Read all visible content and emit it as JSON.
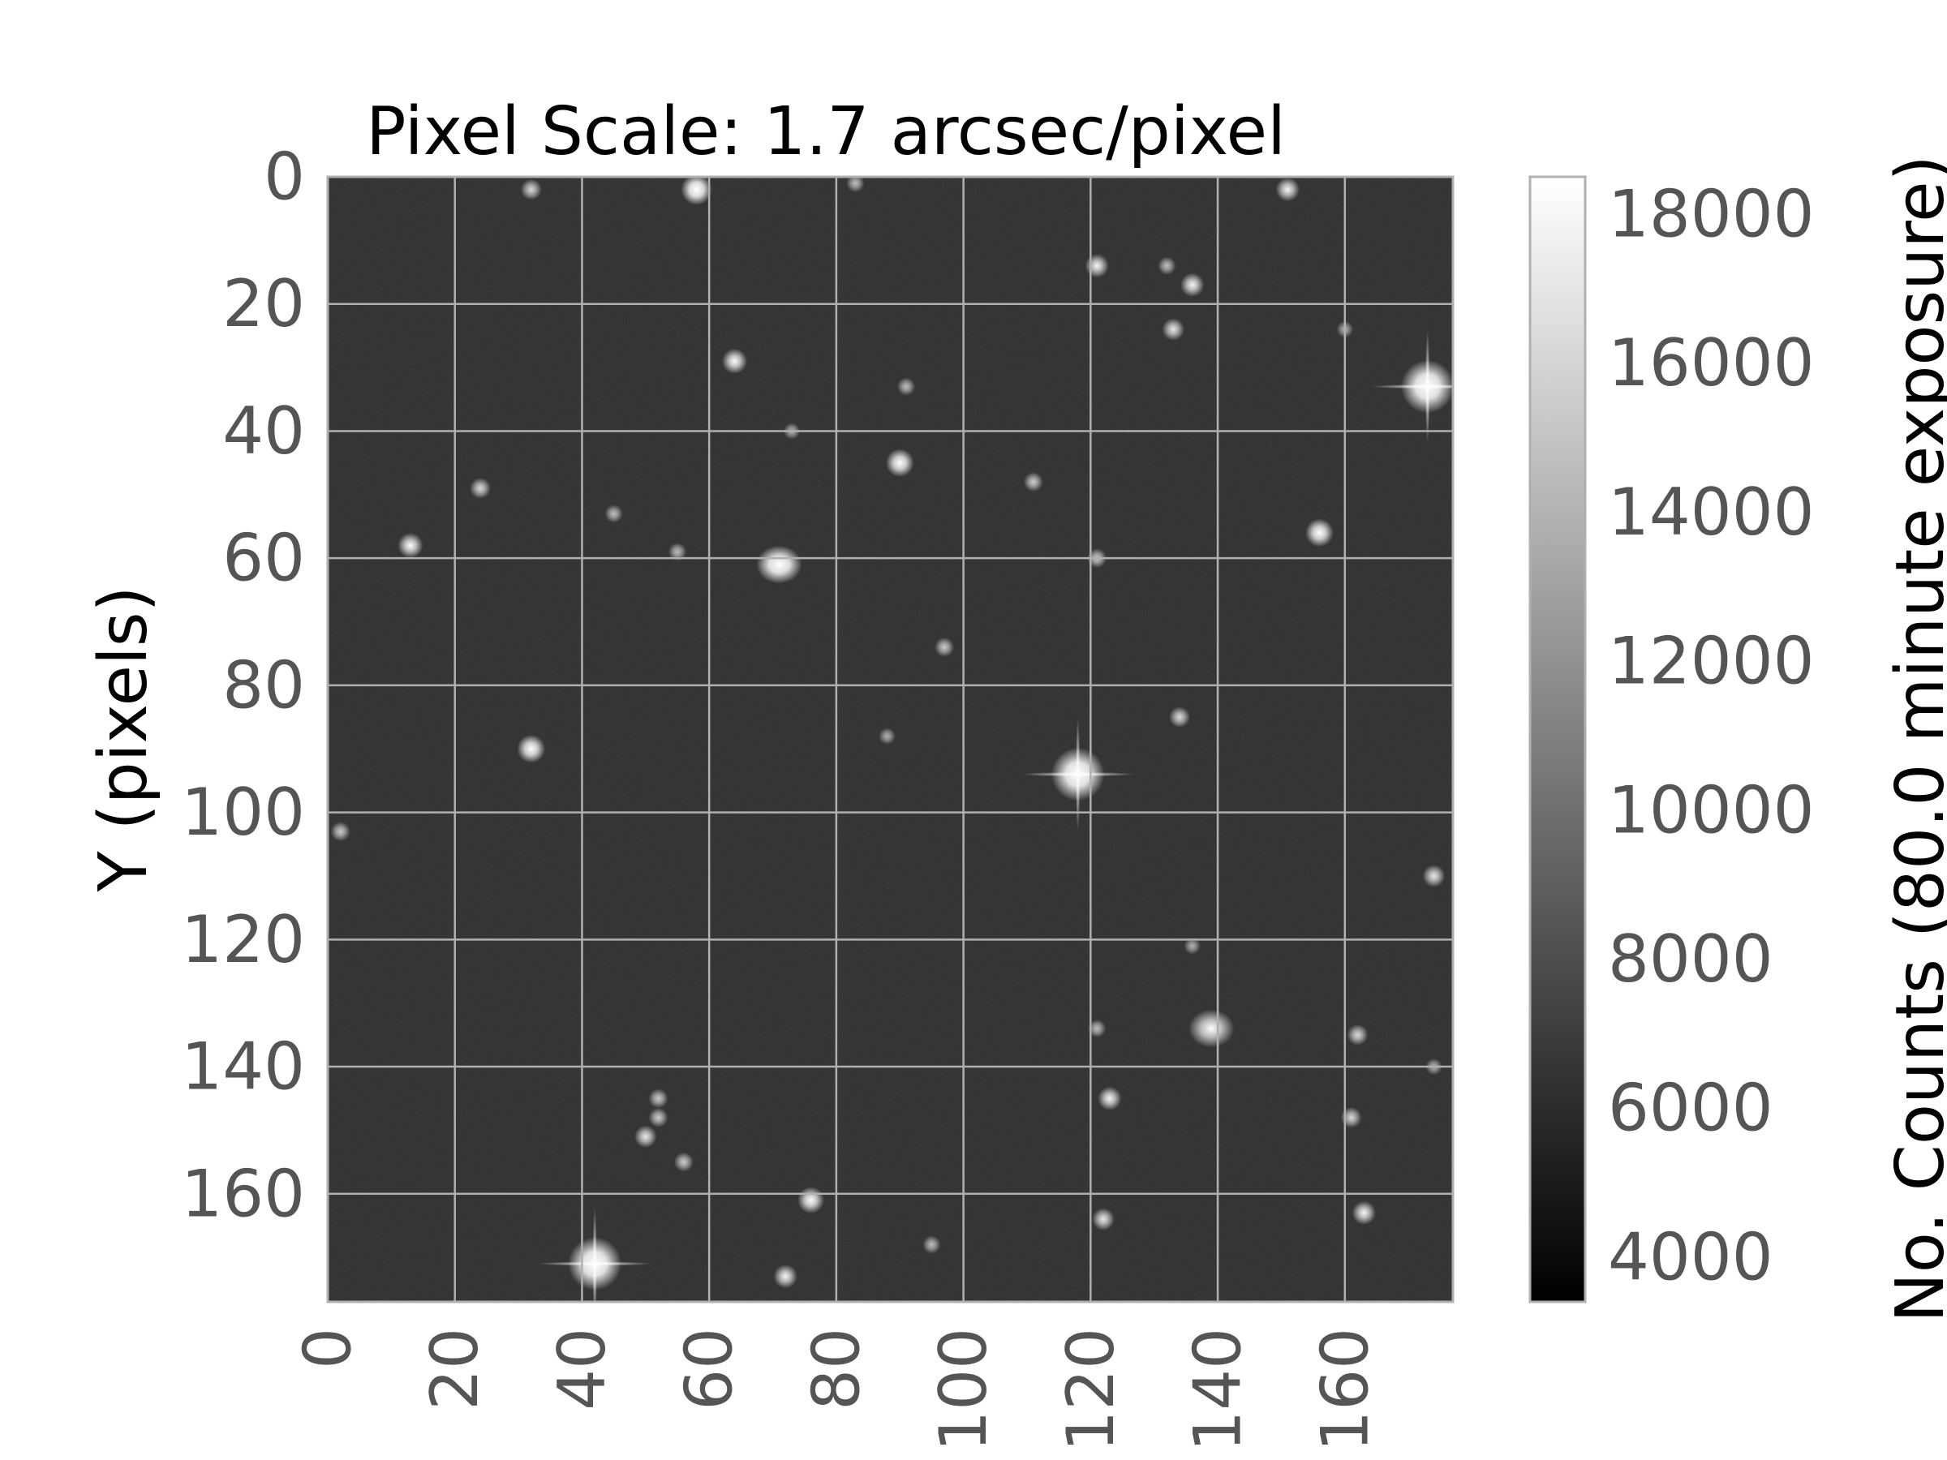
{
  "chart_data": {
    "type": "heatmap",
    "title": "Pixel Scale: 1.7 arcsec/pixel",
    "xlabel": "",
    "ylabel": "Y (pixels)",
    "colorbar_label": "No. Counts (80.0 minute exposure)",
    "colormap": "gray",
    "x_range": [
      0,
      177
    ],
    "y_range": [
      0,
      177
    ],
    "y_inverted": true,
    "grid": true,
    "x_ticks": [
      0,
      20,
      40,
      60,
      80,
      100,
      120,
      140,
      160
    ],
    "y_ticks": [
      0,
      20,
      40,
      60,
      80,
      100,
      120,
      140,
      160
    ],
    "colorbar_range": [
      3400,
      18500
    ],
    "colorbar_ticks": [
      4000,
      6000,
      8000,
      10000,
      12000,
      14000,
      16000,
      18000
    ],
    "background_counts": 4300,
    "stars": [
      {
        "x": 58,
        "y": 2,
        "peak": 18000
      },
      {
        "x": 32,
        "y": 2,
        "peak": 11000
      },
      {
        "x": 83,
        "y": 1,
        "peak": 9000
      },
      {
        "x": 151,
        "y": 2,
        "peak": 13000
      },
      {
        "x": 121,
        "y": 14,
        "peak": 13000
      },
      {
        "x": 132,
        "y": 14,
        "peak": 9000
      },
      {
        "x": 136,
        "y": 17,
        "peak": 13000
      },
      {
        "x": 133,
        "y": 24,
        "peak": 12000
      },
      {
        "x": 160,
        "y": 24,
        "peak": 8000
      },
      {
        "x": 64,
        "y": 29,
        "peak": 14000
      },
      {
        "x": 91,
        "y": 33,
        "peak": 9000
      },
      {
        "x": 173,
        "y": 33,
        "peak": 18500,
        "spikes": true
      },
      {
        "x": 73,
        "y": 40,
        "peak": 8000
      },
      {
        "x": 90,
        "y": 45,
        "peak": 16000
      },
      {
        "x": 24,
        "y": 49,
        "peak": 11000
      },
      {
        "x": 111,
        "y": 48,
        "peak": 10000
      },
      {
        "x": 45,
        "y": 53,
        "peak": 9000
      },
      {
        "x": 13,
        "y": 58,
        "peak": 14000
      },
      {
        "x": 156,
        "y": 56,
        "peak": 16000
      },
      {
        "x": 55,
        "y": 59,
        "peak": 9000
      },
      {
        "x": 71,
        "y": 61,
        "peak": 18000,
        "extended": true
      },
      {
        "x": 121,
        "y": 60,
        "peak": 10000
      },
      {
        "x": 97,
        "y": 74,
        "peak": 10000
      },
      {
        "x": 134,
        "y": 85,
        "peak": 11000
      },
      {
        "x": 32,
        "y": 90,
        "peak": 16000
      },
      {
        "x": 88,
        "y": 88,
        "peak": 8000
      },
      {
        "x": 118,
        "y": 94,
        "peak": 18500,
        "spikes": true
      },
      {
        "x": 2,
        "y": 103,
        "peak": 10000
      },
      {
        "x": 174,
        "y": 110,
        "peak": 12000
      },
      {
        "x": 136,
        "y": 121,
        "peak": 8000
      },
      {
        "x": 139,
        "y": 134,
        "peak": 14000,
        "extended": true
      },
      {
        "x": 121,
        "y": 134,
        "peak": 9000
      },
      {
        "x": 162,
        "y": 135,
        "peak": 11000
      },
      {
        "x": 174,
        "y": 140,
        "peak": 8000
      },
      {
        "x": 123,
        "y": 145,
        "peak": 13000
      },
      {
        "x": 52,
        "y": 145,
        "peak": 10000
      },
      {
        "x": 52,
        "y": 148,
        "peak": 10000
      },
      {
        "x": 50,
        "y": 151,
        "peak": 12000
      },
      {
        "x": 161,
        "y": 148,
        "peak": 11000
      },
      {
        "x": 56,
        "y": 155,
        "peak": 10000
      },
      {
        "x": 76,
        "y": 161,
        "peak": 15000
      },
      {
        "x": 122,
        "y": 164,
        "peak": 12000
      },
      {
        "x": 163,
        "y": 163,
        "peak": 13000
      },
      {
        "x": 42,
        "y": 171,
        "peak": 18500,
        "spikes": true
      },
      {
        "x": 72,
        "y": 173,
        "peak": 13000
      },
      {
        "x": 95,
        "y": 168,
        "peak": 9000
      }
    ]
  }
}
